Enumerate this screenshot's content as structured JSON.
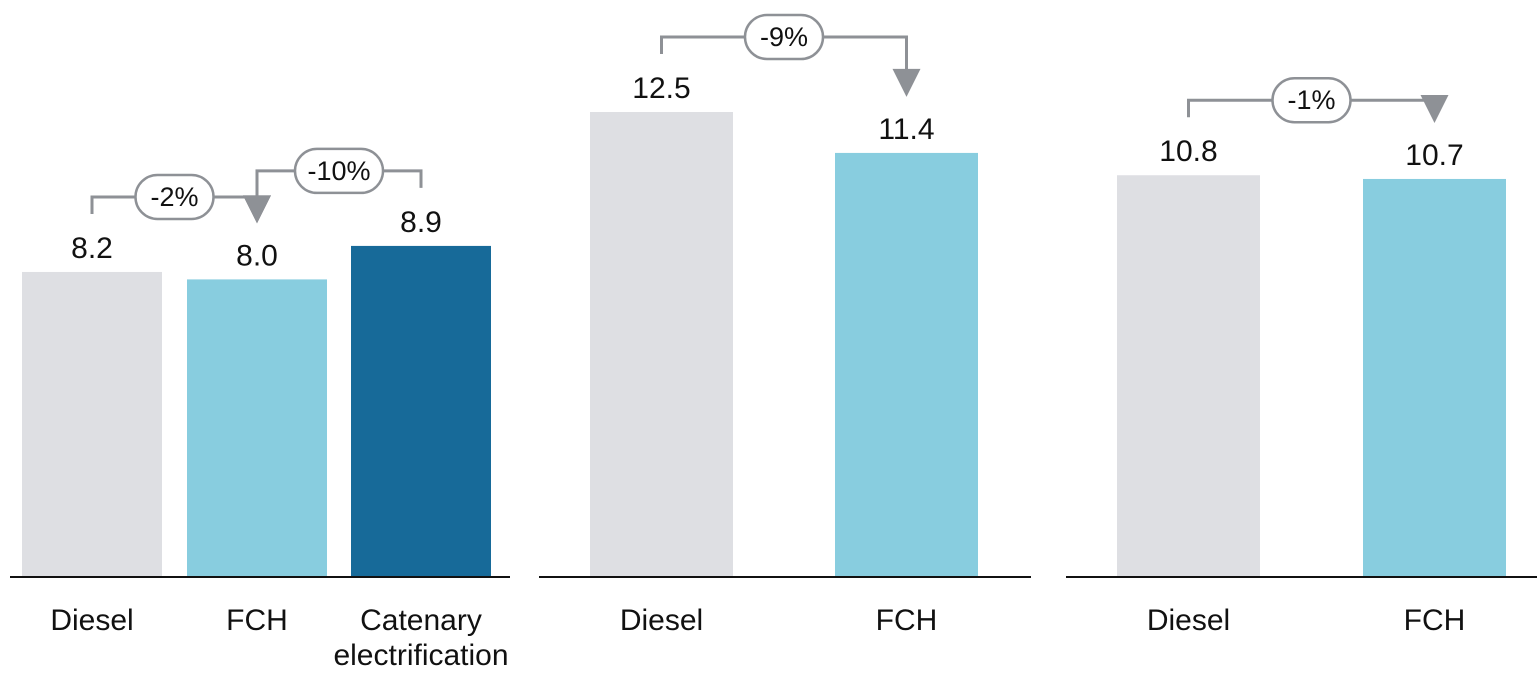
{
  "colors": {
    "diesel": "#DEDFE3",
    "fch": "#88CDDF",
    "catenary": "#176A99",
    "axis": "#111111",
    "connector": "#8E9196"
  },
  "chart_data": [
    {
      "type": "bar",
      "categories": [
        "Diesel",
        "FCH",
        "Catenary electrification"
      ],
      "category_lines": [
        [
          "Diesel"
        ],
        [
          "FCH"
        ],
        [
          "Catenary",
          "electrification"
        ]
      ],
      "values": [
        8.2,
        8.0,
        8.9
      ],
      "value_labels": [
        "8.2",
        "8.0",
        "8.9"
      ],
      "bar_colors": [
        "diesel",
        "fch",
        "catenary"
      ],
      "ylim": [
        0,
        13
      ],
      "changes": [
        {
          "from": 0,
          "to": 1,
          "label": "-2%"
        },
        {
          "from": 2,
          "to": 1,
          "label": "-10%"
        }
      ]
    },
    {
      "type": "bar",
      "categories": [
        "Diesel",
        "FCH"
      ],
      "category_lines": [
        [
          "Diesel"
        ],
        [
          "FCH"
        ]
      ],
      "values": [
        12.5,
        11.4
      ],
      "value_labels": [
        "12.5",
        "11.4"
      ],
      "bar_colors": [
        "diesel",
        "fch"
      ],
      "ylim": [
        0,
        13
      ],
      "changes": [
        {
          "from": 0,
          "to": 1,
          "label": "-9%"
        }
      ]
    },
    {
      "type": "bar",
      "categories": [
        "Diesel",
        "FCH"
      ],
      "category_lines": [
        [
          "Diesel"
        ],
        [
          "FCH"
        ]
      ],
      "values": [
        10.8,
        10.7
      ],
      "value_labels": [
        "10.8",
        "10.7"
      ],
      "bar_colors": [
        "diesel",
        "fch"
      ],
      "ylim": [
        0,
        13
      ],
      "changes": [
        {
          "from": 0,
          "to": 1,
          "label": "-1%"
        }
      ]
    }
  ]
}
